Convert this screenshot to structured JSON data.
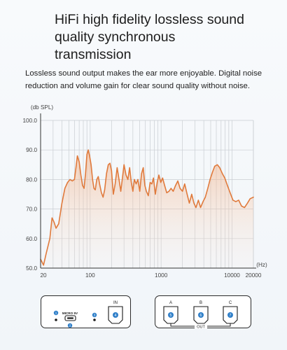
{
  "heading": {
    "lines": [
      "HiFi high fidelity lossless sound",
      "quality synchronous",
      "transmission"
    ]
  },
  "description": {
    "lines": [
      "Lossless sound output makes the ear more enjoyable. Digital noise",
      "reduction and volume gain for clear sound quality without noise."
    ]
  },
  "colors": {
    "curve": "#e07a3c",
    "fill_top": "#f2a97a",
    "grid": "#c9cdd2",
    "axis": "#333333",
    "port_blue": "#2f7fc9"
  },
  "chart_data": {
    "type": "area",
    "ylabel": "(db SPL)",
    "xlabel": "(Hz)",
    "x_scale": "log",
    "xlim": [
      20,
      20000
    ],
    "ylim": [
      50,
      100
    ],
    "y_ticks": [
      "100.0",
      "90.0",
      "80.0",
      "70.0",
      "60.0",
      "50.0"
    ],
    "x_ticks": [
      "20",
      "100",
      "1000",
      "10000",
      "20000"
    ],
    "grid": true,
    "series": [
      {
        "x": [
          20,
          22,
          24,
          27,
          29,
          31,
          33,
          36,
          40,
          44,
          48,
          52,
          56,
          60,
          63,
          66,
          70,
          74,
          78,
          82,
          86,
          90,
          94,
          98,
          103,
          108,
          113,
          118,
          124,
          130,
          137,
          144,
          152,
          160,
          170,
          180,
          190,
          200,
          212,
          225,
          240,
          255,
          270,
          285,
          300,
          320,
          340,
          360,
          380,
          400,
          420,
          445,
          470,
          500,
          530,
          560,
          590,
          620,
          660,
          700,
          740,
          780,
          830,
          880,
          930,
          990,
          1050,
          1120,
          1200,
          1290,
          1380,
          1480,
          1600,
          1720,
          1850,
          2000,
          2150,
          2300,
          2500,
          2700,
          2900,
          3100,
          3350,
          3600,
          3900,
          4200,
          4550,
          4900,
          5300,
          5700,
          6200,
          6700,
          7300,
          7900,
          8600,
          9400,
          10300,
          11300,
          12400,
          13600,
          15000,
          16500,
          18000,
          20000
        ],
        "y": [
          53.0,
          51.0,
          55.0,
          60.0,
          67.0,
          65.5,
          63.5,
          65.0,
          72.0,
          77.0,
          79.0,
          80.0,
          79.5,
          80.0,
          84.0,
          88.0,
          86.0,
          81.5,
          78.0,
          77.0,
          82.0,
          88.5,
          90.0,
          88.0,
          85.0,
          80.0,
          77.0,
          76.5,
          80.0,
          81.0,
          78.0,
          75.5,
          74.0,
          76.5,
          82.0,
          85.0,
          85.5,
          83.0,
          75.0,
          78.5,
          84.0,
          80.0,
          76.0,
          80.5,
          85.0,
          81.5,
          80.0,
          84.0,
          79.0,
          76.0,
          80.0,
          78.5,
          80.0,
          76.0,
          82.0,
          84.0,
          78.0,
          76.0,
          74.5,
          79.0,
          78.5,
          80.5,
          75.0,
          79.0,
          81.5,
          79.0,
          80.5,
          78.0,
          75.5,
          76.0,
          77.0,
          76.0,
          78.0,
          79.5,
          77.0,
          76.0,
          78.5,
          75.5,
          72.0,
          75.0,
          72.0,
          70.5,
          73.0,
          70.5,
          72.5,
          74.0,
          77.0,
          80.0,
          82.5,
          84.5,
          85.0,
          84.0,
          82.0,
          80.5,
          78.0,
          75.5,
          73.0,
          72.5,
          73.0,
          71.0,
          70.5,
          72.0,
          73.5,
          74.0
        ]
      }
    ]
  },
  "ports": {
    "left_box": {
      "micro_label": "MICRO 5V",
      "in_label": "IN",
      "badge1": "1",
      "badge2": "2",
      "badge3": "3",
      "badge4": "4"
    },
    "right_box": {
      "label_a": "A",
      "label_b": "B",
      "label_c": "C",
      "out_label": "OUT",
      "badge5": "5",
      "badge6": "6",
      "badge7": "7"
    }
  }
}
